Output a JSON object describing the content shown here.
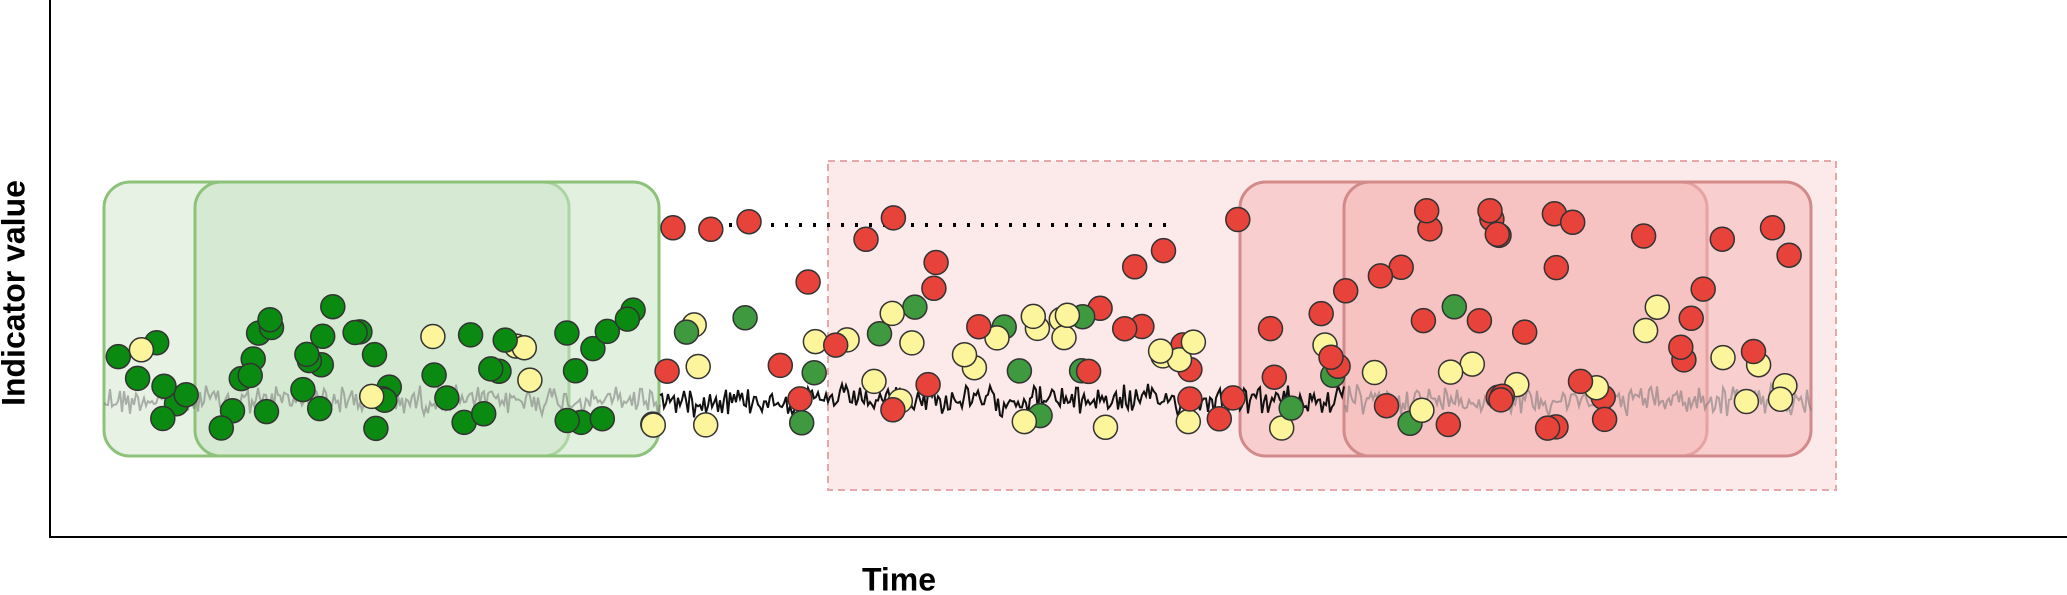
{
  "axes": {
    "y_label": "Indicator value",
    "x_label": "Time"
  }
}
